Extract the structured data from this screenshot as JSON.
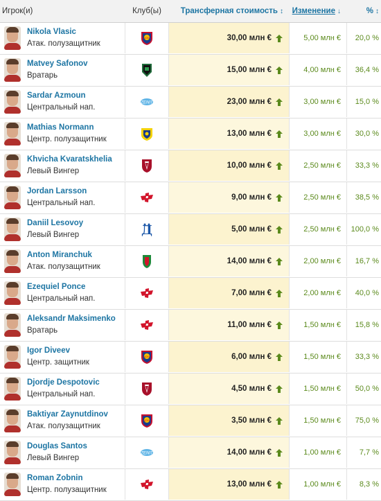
{
  "header": {
    "player": "Игрок(и)",
    "club": "Клуб(ы)",
    "value": "Трансферная стоимость",
    "value_sort": "↕",
    "change": "Изменение",
    "change_sort": "↓",
    "pct": "%",
    "pct_sort": "↕"
  },
  "colors": {
    "link": "#1d75a3",
    "positive": "#5b8a1c",
    "value_bg": "#fdf7dd",
    "up_arrow": "#5b8a1c"
  },
  "rows": [
    {
      "name": "Nikola Vlasic",
      "position": "Атак. полузащитник",
      "club_icon": "cska-crest-icon",
      "value": "30,00 млн €",
      "change": "5,00 млн €",
      "pct": "20,0 %"
    },
    {
      "name": "Matvey Safonov",
      "position": "Вратарь",
      "club_icon": "krasnodar-crest-icon",
      "value": "15,00 млн €",
      "change": "4,00 млн €",
      "pct": "36,4 %"
    },
    {
      "name": "Sardar Azmoun",
      "position": "Центральный нап.",
      "club_icon": "zenit-crest-icon",
      "value": "23,00 млн €",
      "change": "3,00 млн €",
      "pct": "15,0 %"
    },
    {
      "name": "Mathias Normann",
      "position": "Центр. полузащитник",
      "club_icon": "rostov-crest-icon",
      "value": "13,00 млн €",
      "change": "3,00 млн €",
      "pct": "30,0 %"
    },
    {
      "name": "Khvicha Kvaratskhelia",
      "position": "Левый Вингер",
      "club_icon": "rubin-crest-icon",
      "value": "10,00 млн €",
      "change": "2,50 млн €",
      "pct": "33,3 %"
    },
    {
      "name": "Jordan Larsson",
      "position": "Центральный нап.",
      "club_icon": "spartak-crest-icon",
      "value": "9,00 млн €",
      "change": "2,50 млн €",
      "pct": "38,5 %"
    },
    {
      "name": "Daniil Lesovoy",
      "position": "Левый Вингер",
      "club_icon": "dynamo-crest-icon",
      "value": "5,00 млн €",
      "change": "2,50 млн €",
      "pct": "100,0 %"
    },
    {
      "name": "Anton Miranchuk",
      "position": "Атак. полузащитник",
      "club_icon": "lokomotiv-crest-icon",
      "value": "14,00 млн €",
      "change": "2,00 млн €",
      "pct": "16,7 %"
    },
    {
      "name": "Ezequiel Ponce",
      "position": "Центральный нап.",
      "club_icon": "spartak-crest-icon",
      "value": "7,00 млн €",
      "change": "2,00 млн €",
      "pct": "40,0 %"
    },
    {
      "name": "Aleksandr Maksimenko",
      "position": "Вратарь",
      "club_icon": "spartak-crest-icon",
      "value": "11,00 млн €",
      "change": "1,50 млн €",
      "pct": "15,8 %"
    },
    {
      "name": "Igor Diveev",
      "position": "Центр. защитник",
      "club_icon": "cska-crest-icon",
      "value": "6,00 млн €",
      "change": "1,50 млн €",
      "pct": "33,3 %"
    },
    {
      "name": "Djordje Despotovic",
      "position": "Центральный нап.",
      "club_icon": "rubin-crest-icon",
      "value": "4,50 млн €",
      "change": "1,50 млн €",
      "pct": "50,0 %"
    },
    {
      "name": "Baktiyar Zaynutdinov",
      "position": "Атак. полузащитник",
      "club_icon": "cska-crest-icon",
      "value": "3,50 млн €",
      "change": "1,50 млн €",
      "pct": "75,0 %"
    },
    {
      "name": "Douglas Santos",
      "position": "Левый Вингер",
      "club_icon": "zenit-crest-icon",
      "value": "14,00 млн €",
      "change": "1,00 млн €",
      "pct": "7,7 %"
    },
    {
      "name": "Roman Zobnin",
      "position": "Центр. полузащитник",
      "club_icon": "spartak-crest-icon",
      "value": "13,00 млн €",
      "change": "1,00 млн €",
      "pct": "8,3 %"
    }
  ]
}
